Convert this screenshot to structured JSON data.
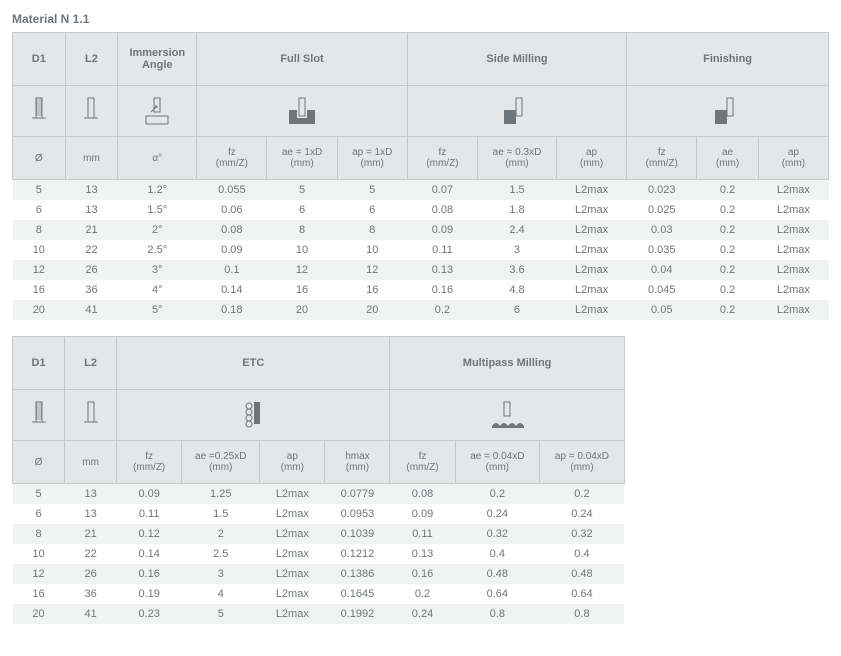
{
  "title": "Material N 1.1",
  "tables": {
    "t1": {
      "group_labels": {
        "d1": "D1",
        "l2": "L2",
        "immersion": "Immersion\nAngle",
        "fullslot": "Full Slot",
        "side": "Side Milling",
        "finishing": "Finishing"
      },
      "unit_labels": {
        "d1": "Ø",
        "l2": "mm",
        "a": "α°",
        "fs_fz": "fz\n(mm/Z)",
        "fs_ae": "ae = 1xD\n(mm)",
        "fs_ap": "ap = 1xD\n(mm)",
        "sm_fz": "fz\n(mm/Z)",
        "sm_ae": "ae = 0.3xD\n(mm)",
        "sm_ap": "ap\n(mm)",
        "fn_fz": "fz\n(mm/Z)",
        "fn_ae": "ae\n(mm)",
        "fn_ap": "ap\n(mm)"
      },
      "rows": [
        {
          "d1": "5",
          "l2": "13",
          "a": "1.2°",
          "fs_fz": "0.055",
          "fs_ae": "5",
          "fs_ap": "5",
          "sm_fz": "0.07",
          "sm_ae": "1.5",
          "sm_ap": "L2max",
          "fn_fz": "0.023",
          "fn_ae": "0.2",
          "fn_ap": "L2max"
        },
        {
          "d1": "6",
          "l2": "13",
          "a": "1.5°",
          "fs_fz": "0.06",
          "fs_ae": "6",
          "fs_ap": "6",
          "sm_fz": "0.08",
          "sm_ae": "1.8",
          "sm_ap": "L2max",
          "fn_fz": "0.025",
          "fn_ae": "0.2",
          "fn_ap": "L2max"
        },
        {
          "d1": "8",
          "l2": "21",
          "a": "2°",
          "fs_fz": "0.08",
          "fs_ae": "8",
          "fs_ap": "8",
          "sm_fz": "0.09",
          "sm_ae": "2.4",
          "sm_ap": "L2max",
          "fn_fz": "0.03",
          "fn_ae": "0.2",
          "fn_ap": "L2max"
        },
        {
          "d1": "10",
          "l2": "22",
          "a": "2.5°",
          "fs_fz": "0.09",
          "fs_ae": "10",
          "fs_ap": "10",
          "sm_fz": "0.11",
          "sm_ae": "3",
          "sm_ap": "L2max",
          "fn_fz": "0.035",
          "fn_ae": "0.2",
          "fn_ap": "L2max"
        },
        {
          "d1": "12",
          "l2": "26",
          "a": "3°",
          "fs_fz": "0.1",
          "fs_ae": "12",
          "fs_ap": "12",
          "sm_fz": "0.13",
          "sm_ae": "3.6",
          "sm_ap": "L2max",
          "fn_fz": "0.04",
          "fn_ae": "0.2",
          "fn_ap": "L2max"
        },
        {
          "d1": "16",
          "l2": "36",
          "a": "4°",
          "fs_fz": "0.14",
          "fs_ae": "16",
          "fs_ap": "16",
          "sm_fz": "0.16",
          "sm_ae": "4.8",
          "sm_ap": "L2max",
          "fn_fz": "0.045",
          "fn_ae": "0.2",
          "fn_ap": "L2max"
        },
        {
          "d1": "20",
          "l2": "41",
          "a": "5°",
          "fs_fz": "0.18",
          "fs_ae": "20",
          "fs_ap": "20",
          "sm_fz": "0.2",
          "sm_ae": "6",
          "sm_ap": "L2max",
          "fn_fz": "0.05",
          "fn_ae": "0.2",
          "fn_ap": "L2max"
        }
      ]
    },
    "t2": {
      "group_labels": {
        "d1": "D1",
        "l2": "L2",
        "etc": "ETC",
        "multi": "Multipass Milling"
      },
      "unit_labels": {
        "d1": "Ø",
        "l2": "mm",
        "etc_fz": "fz\n(mm/Z)",
        "etc_ae": "ae =0.25xD\n(mm)",
        "etc_ap": "ap\n(mm)",
        "etc_hmax": "hmax\n(mm)",
        "mp_fz": "fz\n(mm/Z)",
        "mp_ae": "ae = 0.04xD\n(mm)",
        "mp_ap": "ap = 0.04xD\n(mm)"
      },
      "rows": [
        {
          "d1": "5",
          "l2": "13",
          "etc_fz": "0.09",
          "etc_ae": "1.25",
          "etc_ap": "L2max",
          "etc_hmax": "0.0779",
          "mp_fz": "0.08",
          "mp_ae": "0.2",
          "mp_ap": "0.2"
        },
        {
          "d1": "6",
          "l2": "13",
          "etc_fz": "0.11",
          "etc_ae": "1.5",
          "etc_ap": "L2max",
          "etc_hmax": "0.0953",
          "mp_fz": "0.09",
          "mp_ae": "0.24",
          "mp_ap": "0.24"
        },
        {
          "d1": "8",
          "l2": "21",
          "etc_fz": "0.12",
          "etc_ae": "2",
          "etc_ap": "L2max",
          "etc_hmax": "0.1039",
          "mp_fz": "0.11",
          "mp_ae": "0.32",
          "mp_ap": "0.32"
        },
        {
          "d1": "10",
          "l2": "22",
          "etc_fz": "0.14",
          "etc_ae": "2.5",
          "etc_ap": "L2max",
          "etc_hmax": "0.1212",
          "mp_fz": "0.13",
          "mp_ae": "0.4",
          "mp_ap": "0.4"
        },
        {
          "d1": "12",
          "l2": "26",
          "etc_fz": "0.16",
          "etc_ae": "3",
          "etc_ap": "L2max",
          "etc_hmax": "0.1386",
          "mp_fz": "0.16",
          "mp_ae": "0.48",
          "mp_ap": "0.48"
        },
        {
          "d1": "16",
          "l2": "36",
          "etc_fz": "0.19",
          "etc_ae": "4",
          "etc_ap": "L2max",
          "etc_hmax": "0.1645",
          "mp_fz": "0.2",
          "mp_ae": "0.64",
          "mp_ap": "0.64"
        },
        {
          "d1": "20",
          "l2": "41",
          "etc_fz": "0.23",
          "etc_ae": "5",
          "etc_ap": "L2max",
          "etc_hmax": "0.1992",
          "mp_fz": "0.24",
          "mp_ae": "0.8",
          "mp_ap": "0.8"
        }
      ]
    }
  },
  "style": {
    "header_bg": "#e5e6e7",
    "border": "#c7c8c9",
    "band_bg": "#f1f2f2",
    "text": "#6f7578"
  }
}
